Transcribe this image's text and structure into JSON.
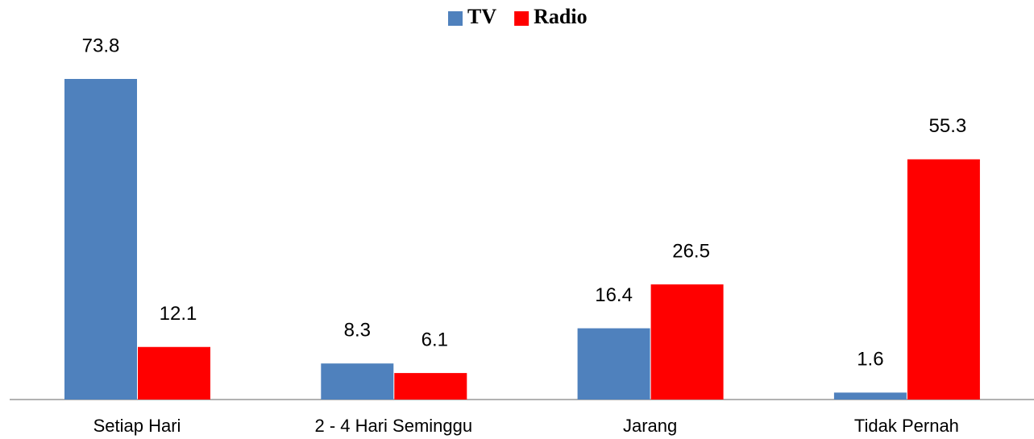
{
  "chart_data": {
    "type": "bar",
    "categories": [
      "Setiap Hari",
      "2 - 4 Hari Seminggu",
      "Jarang",
      "Tidak Pernah"
    ],
    "series": [
      {
        "name": "TV",
        "color": "#4f81bd",
        "values": [
          73.8,
          8.3,
          16.4,
          1.6
        ]
      },
      {
        "name": "Radio",
        "color": "#ff0000",
        "values": [
          12.1,
          6.1,
          26.5,
          55.3
        ]
      }
    ],
    "legend": "top"
  }
}
